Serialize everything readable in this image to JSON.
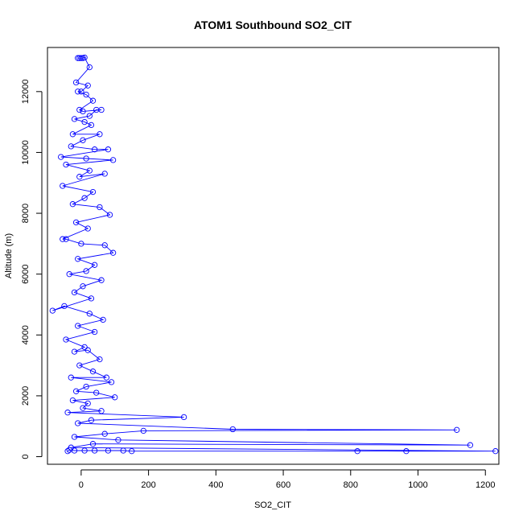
{
  "chart_data": {
    "type": "scatter",
    "title": "ATOM1 Southbound SO2_CIT",
    "xlabel": "SO2_CIT",
    "ylabel": "Altitude (m)",
    "xlim": [
      -100,
      1240
    ],
    "ylim": [
      -250,
      13450
    ],
    "xticks": [
      0,
      200,
      400,
      600,
      800,
      1000,
      1200
    ],
    "yticks": [
      0,
      2000,
      4000,
      6000,
      8000,
      10000,
      12000
    ],
    "series_color": "#0000ff",
    "marker": "open-circle",
    "connected": true,
    "points": [
      [
        -5,
        13100
      ],
      [
        5,
        13100
      ],
      [
        -10,
        13100
      ],
      [
        0,
        13100
      ],
      [
        10,
        13120
      ],
      [
        25,
        12800
      ],
      [
        -15,
        12300
      ],
      [
        20,
        12200
      ],
      [
        0,
        12000
      ],
      [
        -10,
        12000
      ],
      [
        15,
        11900
      ],
      [
        35,
        11700
      ],
      [
        -5,
        11400
      ],
      [
        5,
        11350
      ],
      [
        60,
        11400
      ],
      [
        45,
        11400
      ],
      [
        25,
        11200
      ],
      [
        -20,
        11100
      ],
      [
        10,
        11000
      ],
      [
        30,
        10900
      ],
      [
        -25,
        10600
      ],
      [
        55,
        10600
      ],
      [
        5,
        10400
      ],
      [
        -30,
        10200
      ],
      [
        40,
        10100
      ],
      [
        80,
        10100
      ],
      [
        -60,
        9850
      ],
      [
        15,
        9800
      ],
      [
        95,
        9750
      ],
      [
        -45,
        9600
      ],
      [
        25,
        9400
      ],
      [
        -5,
        9200
      ],
      [
        70,
        9300
      ],
      [
        -55,
        8900
      ],
      [
        35,
        8700
      ],
      [
        10,
        8500
      ],
      [
        -25,
        8300
      ],
      [
        55,
        8200
      ],
      [
        85,
        7950
      ],
      [
        -15,
        7700
      ],
      [
        20,
        7500
      ],
      [
        -55,
        7150
      ],
      [
        -45,
        7150
      ],
      [
        0,
        7000
      ],
      [
        70,
        6950
      ],
      [
        95,
        6700
      ],
      [
        -10,
        6500
      ],
      [
        40,
        6300
      ],
      [
        15,
        6100
      ],
      [
        -35,
        6000
      ],
      [
        60,
        5800
      ],
      [
        5,
        5600
      ],
      [
        -20,
        5400
      ],
      [
        30,
        5200
      ],
      [
        -85,
        4800
      ],
      [
        -50,
        4950
      ],
      [
        25,
        4700
      ],
      [
        65,
        4500
      ],
      [
        -10,
        4300
      ],
      [
        40,
        4100
      ],
      [
        -45,
        3850
      ],
      [
        10,
        3600
      ],
      [
        -20,
        3450
      ],
      [
        20,
        3500
      ],
      [
        55,
        3200
      ],
      [
        -5,
        3000
      ],
      [
        35,
        2800
      ],
      [
        75,
        2600
      ],
      [
        -30,
        2600
      ],
      [
        90,
        2450
      ],
      [
        15,
        2300
      ],
      [
        -15,
        2150
      ],
      [
        45,
        2100
      ],
      [
        100,
        1950
      ],
      [
        -25,
        1850
      ],
      [
        20,
        1750
      ],
      [
        5,
        1600
      ],
      [
        60,
        1500
      ],
      [
        -40,
        1450
      ],
      [
        305,
        1300
      ],
      [
        30,
        1200
      ],
      [
        -10,
        1100
      ],
      [
        450,
        900
      ],
      [
        1115,
        880
      ],
      [
        185,
        850
      ],
      [
        70,
        750
      ],
      [
        -20,
        650
      ],
      [
        110,
        550
      ],
      [
        1155,
        380
      ],
      [
        35,
        420
      ],
      [
        -30,
        300
      ],
      [
        1230,
        180
      ],
      [
        965,
        180
      ],
      [
        820,
        180
      ],
      [
        150,
        180
      ],
      [
        125,
        200
      ],
      [
        80,
        200
      ],
      [
        40,
        200
      ],
      [
        10,
        200
      ],
      [
        -20,
        200
      ],
      [
        -35,
        220
      ],
      [
        -40,
        180
      ]
    ],
    "path_order": [
      [
        0,
        1,
        2,
        3,
        4,
        5,
        6,
        7,
        8,
        9,
        10,
        11,
        12,
        13,
        14,
        15,
        16,
        17,
        18,
        19,
        20,
        21,
        22,
        23,
        24,
        25,
        26,
        27,
        28,
        29,
        30,
        31,
        32,
        33,
        34,
        35,
        36,
        37,
        38,
        39,
        40,
        41,
        42,
        43,
        44,
        45,
        46,
        47,
        48,
        49,
        50,
        51,
        52,
        53,
        54,
        55,
        56,
        57,
        58,
        59,
        60,
        61,
        62,
        63,
        64,
        65,
        66,
        67,
        68,
        69,
        70,
        71,
        72,
        73,
        74,
        75,
        76,
        77,
        78,
        79,
        80,
        81,
        82,
        83,
        84,
        85,
        86,
        87,
        88,
        89,
        90,
        91,
        92,
        93,
        94,
        95,
        96,
        97,
        98,
        99,
        100,
        101
      ]
    ]
  }
}
